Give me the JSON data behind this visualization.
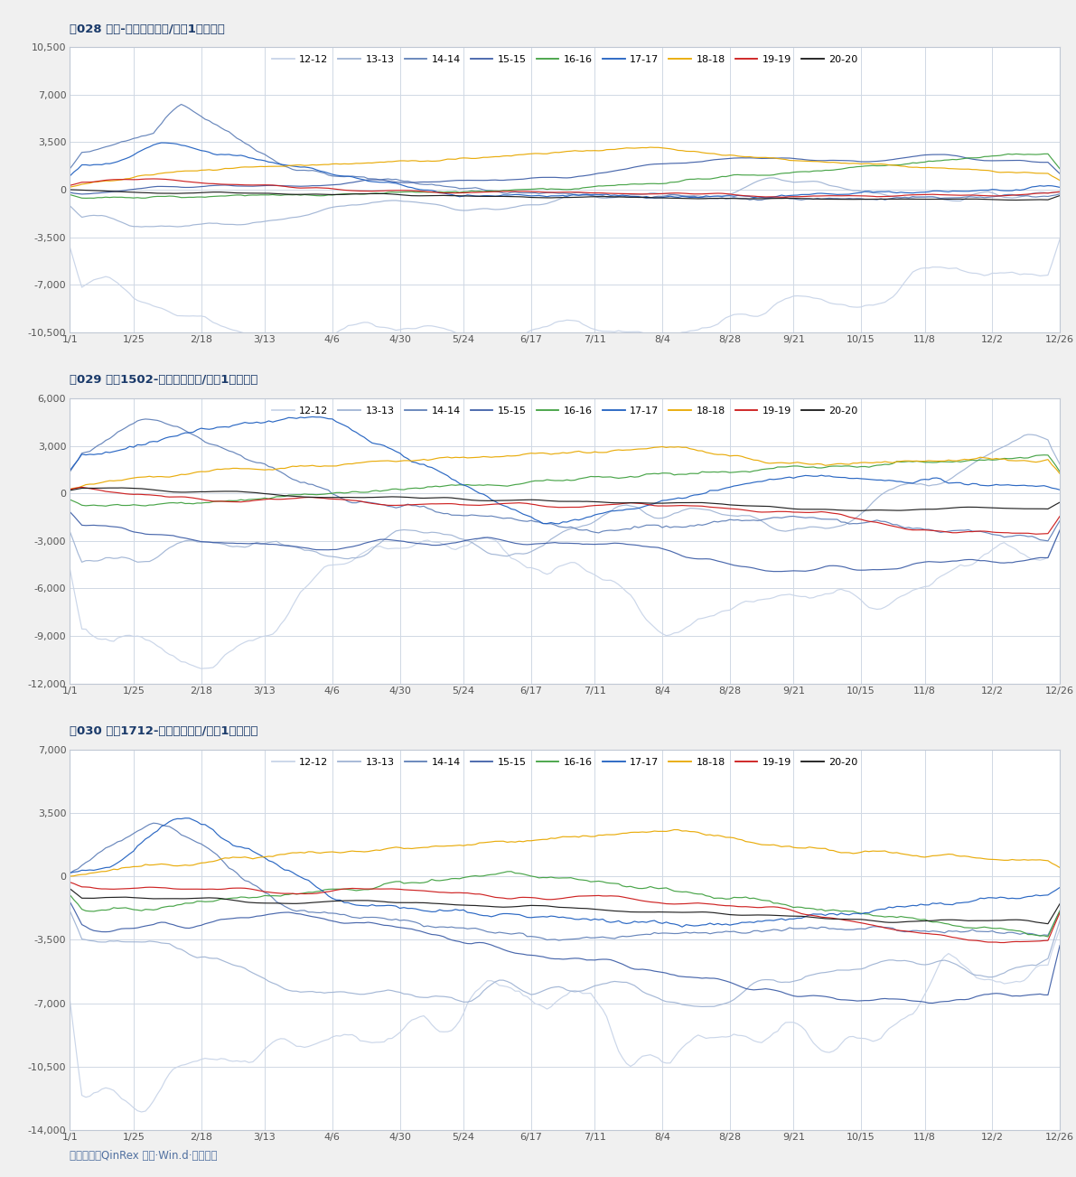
{
  "title1": "图028 顺丁-全乳老胶（元/吨，1年周期）",
  "title2": "图029 丁苯1502-全乳老胶（元/吨，1年周期）",
  "title3": "图030 丁苯1712-全乳老胶（元/吨，1年周期）",
  "footer": "资料来源：QinRex 咨询·Win.d·银河期货",
  "legend_labels": [
    "12-12",
    "13-13",
    "14-14",
    "15-15",
    "16-16",
    "17-17",
    "18-18",
    "19-19",
    "20-20"
  ],
  "line_colors": [
    "#c8d4e8",
    "#a0b4d4",
    "#6080b8",
    "#4060a8",
    "#40a040",
    "#2060c0",
    "#e8a800",
    "#cc1818",
    "#181818"
  ],
  "x_labels": [
    "1/1",
    "1/25",
    "2/18",
    "3/13",
    "4/6",
    "4/30",
    "5/24",
    "6/17",
    "7/11",
    "8/4",
    "8/28",
    "9/21",
    "10/15",
    "11/8",
    "12/2",
    "12/26"
  ],
  "chart1_ylim": [
    -10500,
    10500
  ],
  "chart1_yticks": [
    -10500,
    -7000,
    -3500,
    0,
    3500,
    7000,
    10500
  ],
  "chart2_ylim": [
    -12000,
    6000
  ],
  "chart2_yticks": [
    -12000,
    -9000,
    -6000,
    -3000,
    0,
    3000,
    6000
  ],
  "chart3_ylim": [
    -14000,
    7000
  ],
  "chart3_yticks": [
    -14000,
    -10500,
    -7000,
    -3500,
    0,
    3500,
    7000
  ],
  "background_color": "#f0f0f0",
  "panel_bg": "#ffffff",
  "grid_color": "#d0d8e4",
  "title_color": "#1a3a6a",
  "footer_color": "#5070a0",
  "n_points": 250
}
